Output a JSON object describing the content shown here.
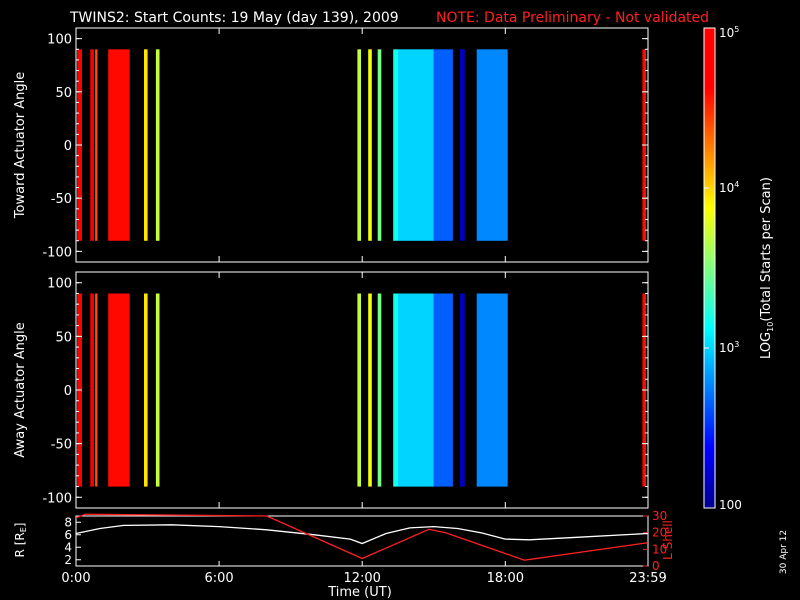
{
  "header": {
    "title": "TWINS2: Start Counts: 19 May (day 139), 2009",
    "note": "NOTE: Data Preliminary - Not validated"
  },
  "side_stamp": "30 Apr 12",
  "colors": {
    "background": "#000000",
    "axes": "#ffffff",
    "note": "#ff2020",
    "lshell": "#ff2020",
    "r_curve": "#ffffff"
  },
  "chart_data": [
    {
      "type": "heatmap",
      "panel": "toward",
      "ylabel": "Toward Actuator Angle",
      "xlim": [
        "0:00",
        "23:59"
      ],
      "ylim": [
        -110,
        110
      ],
      "yticks": [
        100,
        50,
        0,
        -50,
        -100
      ],
      "color_scale": "log",
      "columns": [
        {
          "t0": 0.05,
          "t1": 0.25,
          "value": 50000
        },
        {
          "t0": 0.6,
          "t1": 0.75,
          "value": 60000
        },
        {
          "t0": 0.8,
          "t1": 0.9,
          "value": 25000
        },
        {
          "t0": 1.35,
          "t1": 2.25,
          "value": 40000
        },
        {
          "t0": 2.85,
          "t1": 3.0,
          "value": 9000
        },
        {
          "t0": 3.35,
          "t1": 3.5,
          "value": 5000
        },
        {
          "t0": 11.8,
          "t1": 11.95,
          "value": 5000
        },
        {
          "t0": 12.25,
          "t1": 12.4,
          "value": 7000
        },
        {
          "t0": 12.65,
          "t1": 12.8,
          "value": 3000
        },
        {
          "t0": 13.3,
          "t1": 13.5,
          "value": 1500
        },
        {
          "t0": 13.5,
          "t1": 15.0,
          "value": 1000
        },
        {
          "t0": 15.0,
          "t1": 15.8,
          "value": 450
        },
        {
          "t0": 16.1,
          "t1": 16.3,
          "value": 140
        },
        {
          "t0": 16.8,
          "t1": 18.1,
          "value": 600
        },
        {
          "t0": 23.75,
          "t1": 23.9,
          "value": 40000
        }
      ]
    },
    {
      "type": "heatmap",
      "panel": "away",
      "ylabel": "Away Actuator Angle",
      "xlim": [
        "0:00",
        "23:59"
      ],
      "ylim": [
        -110,
        110
      ],
      "yticks": [
        100,
        50,
        0,
        -50,
        -100
      ],
      "color_scale": "log",
      "columns": [
        {
          "t0": 0.05,
          "t1": 0.25,
          "value": 50000
        },
        {
          "t0": 0.6,
          "t1": 0.75,
          "value": 60000
        },
        {
          "t0": 0.8,
          "t1": 0.9,
          "value": 25000
        },
        {
          "t0": 1.35,
          "t1": 2.25,
          "value": 40000
        },
        {
          "t0": 2.85,
          "t1": 3.0,
          "value": 9000
        },
        {
          "t0": 3.35,
          "t1": 3.5,
          "value": 5000
        },
        {
          "t0": 11.8,
          "t1": 11.95,
          "value": 5000
        },
        {
          "t0": 12.25,
          "t1": 12.4,
          "value": 7000
        },
        {
          "t0": 12.65,
          "t1": 12.8,
          "value": 3000
        },
        {
          "t0": 13.3,
          "t1": 13.5,
          "value": 1500
        },
        {
          "t0": 13.5,
          "t1": 15.0,
          "value": 1000
        },
        {
          "t0": 15.0,
          "t1": 15.8,
          "value": 450
        },
        {
          "t0": 16.1,
          "t1": 16.3,
          "value": 140
        },
        {
          "t0": 16.8,
          "t1": 18.1,
          "value": 600
        },
        {
          "t0": 23.75,
          "t1": 23.9,
          "value": 40000
        }
      ]
    },
    {
      "type": "line",
      "panel": "orbit",
      "xlabel": "Time (UT)",
      "xticks": [
        "0:00",
        "6:00",
        "12:00",
        "18:00",
        "23:59"
      ],
      "y_left": {
        "label": "R [R",
        "label_sub": "E",
        "label_end": "]",
        "ticks": [
          "8",
          "6",
          "4",
          "2"
        ],
        "lim": [
          1,
          9
        ]
      },
      "y_right": {
        "label": "L Shell",
        "ticks": [
          "30",
          "20",
          "10",
          "0"
        ],
        "lim": [
          0,
          30
        ]
      },
      "series": [
        {
          "axis": "left",
          "x": [
            0,
            1,
            2,
            4,
            6,
            8,
            10,
            11.5,
            12,
            13,
            14,
            15,
            16,
            17,
            18,
            19,
            21,
            23.98
          ],
          "y": [
            6.2,
            7.0,
            7.5,
            7.6,
            7.3,
            6.8,
            6.0,
            5.3,
            4.6,
            6.2,
            7.1,
            7.3,
            7.0,
            6.3,
            5.3,
            5.2,
            5.6,
            6.2
          ]
        },
        {
          "axis": "right",
          "x": [
            0,
            0.4,
            8,
            12,
            14.8,
            15.5,
            18.8,
            23.98
          ],
          "y": [
            29,
            31,
            30,
            4.5,
            22,
            20,
            3.5,
            14
          ]
        }
      ]
    }
  ],
  "colorbar": {
    "label_prefix": "LOG",
    "label_sub": "10",
    "label_rest": "(Total Starts per Scan)",
    "min": 100,
    "max": 100000,
    "ticks": [
      {
        "value": 100,
        "base": "100",
        "exp": ""
      },
      {
        "value": 1000,
        "base": "10",
        "exp": "3"
      },
      {
        "value": 10000,
        "base": "10",
        "exp": "4"
      },
      {
        "value": 100000,
        "base": "10",
        "exp": "5"
      }
    ]
  }
}
